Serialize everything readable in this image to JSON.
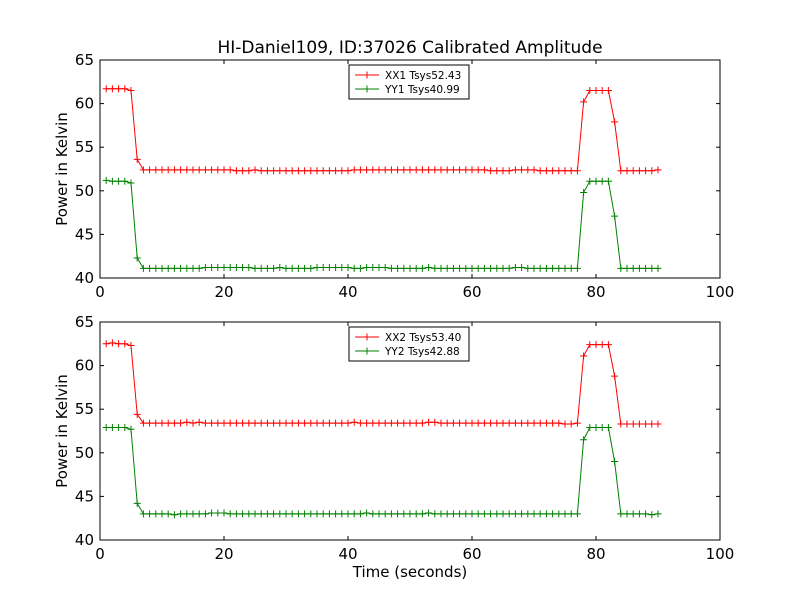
{
  "title": "HI-Daniel109, ID:37026 Calibrated Amplitude",
  "chart_data": [
    {
      "type": "line",
      "title": "HI-Daniel109, ID:37026 Calibrated Amplitude",
      "xlabel": "",
      "ylabel": "Power in Kelvin",
      "xlim": [
        0,
        100
      ],
      "ylim": [
        40,
        65
      ],
      "xticks": [
        "0",
        "20",
        "40",
        "60",
        "80",
        "100"
      ],
      "yticks": [
        "40",
        "45",
        "50",
        "55",
        "60",
        "65"
      ],
      "grid": false,
      "legend_position": "upper-center",
      "x": [
        1,
        2,
        3,
        4,
        5,
        6,
        7,
        8,
        9,
        10,
        11,
        12,
        13,
        14,
        15,
        16,
        17,
        18,
        19,
        20,
        21,
        22,
        23,
        24,
        25,
        26,
        27,
        28,
        29,
        30,
        31,
        32,
        33,
        34,
        35,
        36,
        37,
        38,
        39,
        40,
        41,
        42,
        43,
        44,
        45,
        46,
        47,
        48,
        49,
        50,
        51,
        52,
        53,
        54,
        55,
        56,
        57,
        58,
        59,
        60,
        61,
        62,
        63,
        64,
        65,
        66,
        67,
        68,
        69,
        70,
        71,
        72,
        73,
        74,
        75,
        76,
        77,
        78,
        79,
        80,
        81,
        82,
        83,
        84,
        85,
        86,
        87,
        88,
        89,
        90
      ],
      "series": [
        {
          "name": "XX1 Tsys52.43",
          "color": "#ff0000",
          "values": [
            61.7,
            61.7,
            61.7,
            61.7,
            61.5,
            53.6,
            52.4,
            52.4,
            52.4,
            52.4,
            52.4,
            52.4,
            52.4,
            52.4,
            52.4,
            52.4,
            52.4,
            52.4,
            52.4,
            52.4,
            52.4,
            52.3,
            52.3,
            52.3,
            52.4,
            52.3,
            52.3,
            52.3,
            52.3,
            52.3,
            52.3,
            52.3,
            52.3,
            52.3,
            52.3,
            52.3,
            52.3,
            52.3,
            52.3,
            52.3,
            52.4,
            52.4,
            52.4,
            52.4,
            52.4,
            52.4,
            52.4,
            52.4,
            52.4,
            52.4,
            52.4,
            52.4,
            52.4,
            52.4,
            52.4,
            52.4,
            52.4,
            52.4,
            52.4,
            52.4,
            52.4,
            52.4,
            52.3,
            52.3,
            52.3,
            52.3,
            52.4,
            52.4,
            52.4,
            52.4,
            52.3,
            52.3,
            52.3,
            52.3,
            52.3,
            52.3,
            52.3,
            60.2,
            61.5,
            61.5,
            61.5,
            61.5,
            57.9,
            52.3,
            52.3,
            52.3,
            52.3,
            52.3,
            52.3,
            52.4
          ]
        },
        {
          "name": "YY1 Tsys40.99",
          "color": "#008000",
          "values": [
            51.2,
            51.1,
            51.1,
            51.1,
            50.9,
            42.3,
            41.1,
            41.1,
            41.1,
            41.1,
            41.1,
            41.1,
            41.1,
            41.1,
            41.1,
            41.1,
            41.2,
            41.2,
            41.2,
            41.2,
            41.2,
            41.2,
            41.2,
            41.2,
            41.1,
            41.1,
            41.1,
            41.1,
            41.2,
            41.1,
            41.1,
            41.1,
            41.1,
            41.1,
            41.2,
            41.2,
            41.2,
            41.2,
            41.2,
            41.2,
            41.1,
            41.1,
            41.2,
            41.2,
            41.2,
            41.2,
            41.1,
            41.1,
            41.1,
            41.1,
            41.1,
            41.1,
            41.2,
            41.1,
            41.1,
            41.1,
            41.1,
            41.1,
            41.1,
            41.1,
            41.1,
            41.1,
            41.1,
            41.1,
            41.1,
            41.1,
            41.2,
            41.2,
            41.1,
            41.1,
            41.1,
            41.1,
            41.1,
            41.1,
            41.1,
            41.1,
            41.1,
            49.8,
            51.1,
            51.1,
            51.1,
            51.1,
            47.1,
            41.1,
            41.1,
            41.1,
            41.1,
            41.1,
            41.1,
            41.1
          ]
        }
      ]
    },
    {
      "type": "line",
      "title": "",
      "xlabel": "Time (seconds)",
      "ylabel": "Power in Kelvin",
      "xlim": [
        0,
        100
      ],
      "ylim": [
        40,
        65
      ],
      "xticks": [
        "0",
        "20",
        "40",
        "60",
        "80",
        "100"
      ],
      "yticks": [
        "40",
        "45",
        "50",
        "55",
        "60",
        "65"
      ],
      "grid": false,
      "legend_position": "upper-center",
      "x": [
        1,
        2,
        3,
        4,
        5,
        6,
        7,
        8,
        9,
        10,
        11,
        12,
        13,
        14,
        15,
        16,
        17,
        18,
        19,
        20,
        21,
        22,
        23,
        24,
        25,
        26,
        27,
        28,
        29,
        30,
        31,
        32,
        33,
        34,
        35,
        36,
        37,
        38,
        39,
        40,
        41,
        42,
        43,
        44,
        45,
        46,
        47,
        48,
        49,
        50,
        51,
        52,
        53,
        54,
        55,
        56,
        57,
        58,
        59,
        60,
        61,
        62,
        63,
        64,
        65,
        66,
        67,
        68,
        69,
        70,
        71,
        72,
        73,
        74,
        75,
        76,
        77,
        78,
        79,
        80,
        81,
        82,
        83,
        84,
        85,
        86,
        87,
        88,
        89,
        90
      ],
      "series": [
        {
          "name": "XX2 Tsys53.40",
          "color": "#ff0000",
          "values": [
            62.5,
            62.6,
            62.5,
            62.5,
            62.3,
            54.4,
            53.4,
            53.4,
            53.4,
            53.4,
            53.4,
            53.4,
            53.4,
            53.5,
            53.4,
            53.5,
            53.4,
            53.4,
            53.4,
            53.4,
            53.4,
            53.4,
            53.4,
            53.4,
            53.4,
            53.4,
            53.4,
            53.4,
            53.4,
            53.4,
            53.4,
            53.4,
            53.4,
            53.4,
            53.4,
            53.4,
            53.4,
            53.4,
            53.4,
            53.4,
            53.5,
            53.4,
            53.4,
            53.4,
            53.4,
            53.4,
            53.4,
            53.4,
            53.4,
            53.4,
            53.4,
            53.4,
            53.5,
            53.5,
            53.4,
            53.4,
            53.4,
            53.4,
            53.4,
            53.4,
            53.4,
            53.4,
            53.4,
            53.4,
            53.4,
            53.4,
            53.4,
            53.4,
            53.4,
            53.4,
            53.4,
            53.4,
            53.4,
            53.4,
            53.3,
            53.3,
            53.4,
            61.1,
            62.4,
            62.4,
            62.4,
            62.4,
            58.8,
            53.3,
            53.3,
            53.3,
            53.3,
            53.3,
            53.3,
            53.3
          ]
        },
        {
          "name": "YY2 Tsys42.88",
          "color": "#008000",
          "values": [
            52.9,
            52.9,
            52.9,
            52.9,
            52.7,
            44.2,
            43.0,
            43.0,
            43.0,
            43.0,
            43.0,
            42.9,
            43.0,
            43.0,
            43.0,
            43.0,
            43.0,
            43.1,
            43.1,
            43.1,
            43.0,
            43.0,
            43.0,
            43.0,
            43.0,
            43.0,
            43.0,
            43.0,
            43.0,
            43.0,
            43.0,
            43.0,
            43.0,
            43.0,
            43.0,
            43.0,
            43.0,
            43.0,
            43.0,
            43.0,
            43.0,
            43.0,
            43.1,
            43.0,
            43.0,
            43.0,
            43.0,
            43.0,
            43.0,
            43.0,
            43.0,
            43.0,
            43.1,
            43.0,
            43.0,
            43.0,
            43.0,
            43.0,
            43.0,
            43.0,
            43.0,
            43.0,
            43.0,
            43.0,
            43.0,
            43.0,
            43.0,
            43.0,
            43.0,
            43.0,
            43.0,
            43.0,
            43.0,
            43.0,
            43.0,
            43.0,
            43.0,
            51.5,
            52.9,
            52.9,
            52.9,
            52.9,
            49.0,
            43.0,
            43.0,
            43.0,
            43.0,
            43.0,
            42.9,
            43.0
          ]
        }
      ]
    }
  ]
}
